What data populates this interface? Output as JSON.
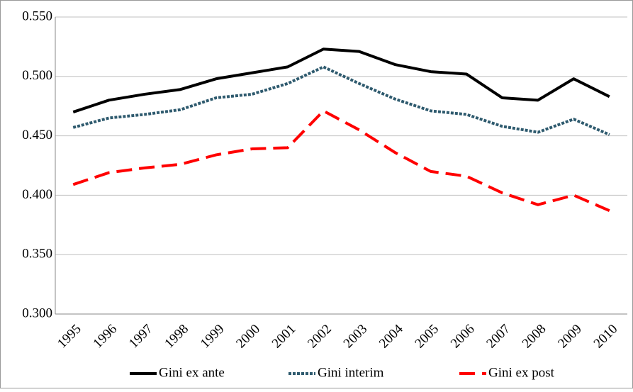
{
  "chart_data": {
    "type": "line",
    "categories": [
      "1995",
      "1996",
      "1997",
      "1998",
      "1999",
      "2000",
      "2001",
      "2002",
      "2003",
      "2004",
      "2005",
      "2006",
      "2007",
      "2008",
      "2009",
      "2010"
    ],
    "series": [
      {
        "name": "Gini ex ante",
        "color": "#000000",
        "dash": "solid",
        "values": [
          0.47,
          0.48,
          0.485,
          0.489,
          0.498,
          0.503,
          0.508,
          0.523,
          0.521,
          0.51,
          0.504,
          0.502,
          0.482,
          0.48,
          0.498,
          0.483
        ]
      },
      {
        "name": "Gini interim",
        "color": "#2e5a6e",
        "dash": "dotted",
        "values": [
          0.457,
          0.465,
          0.468,
          0.472,
          0.482,
          0.485,
          0.494,
          0.508,
          0.494,
          0.481,
          0.471,
          0.468,
          0.458,
          0.453,
          0.464,
          0.451
        ]
      },
      {
        "name": "Gini ex post",
        "color": "#ff0000",
        "dash": "dashed",
        "values": [
          0.409,
          0.419,
          0.423,
          0.426,
          0.434,
          0.439,
          0.44,
          0.471,
          0.455,
          0.436,
          0.42,
          0.416,
          0.402,
          0.392,
          0.4,
          0.387
        ]
      }
    ],
    "ylim": [
      0.3,
      0.55
    ],
    "yticks": [
      {
        "value": 0.3,
        "label": "0.300"
      },
      {
        "value": 0.35,
        "label": "0.350"
      },
      {
        "value": 0.4,
        "label": "0.400"
      },
      {
        "value": 0.45,
        "label": "0.450"
      },
      {
        "value": 0.5,
        "label": "0.500"
      },
      {
        "value": 0.55,
        "label": "0.550"
      }
    ],
    "grid": true,
    "legend": "bottom"
  }
}
